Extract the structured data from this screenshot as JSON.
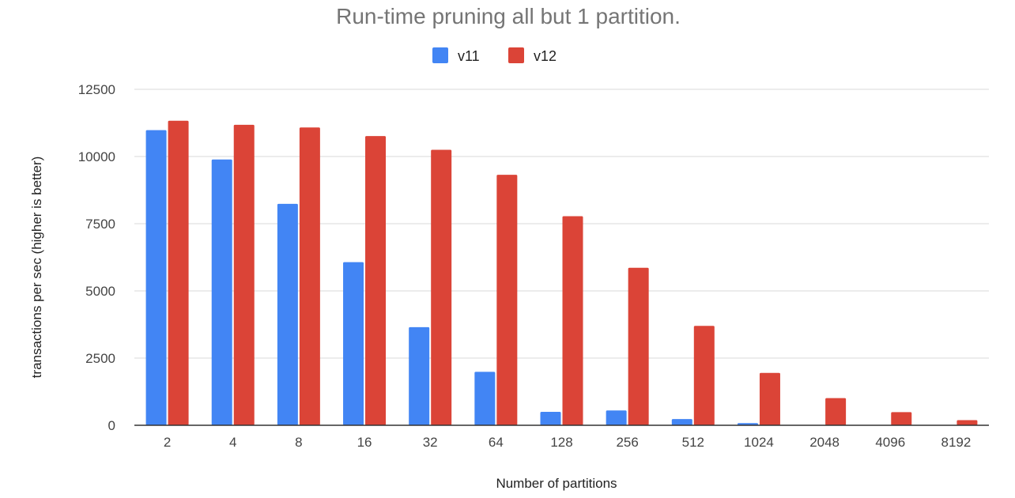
{
  "chart_data": {
    "type": "bar",
    "title": "Run-time pruning all but 1 partition.",
    "xlabel": "Number of partitions",
    "ylabel": "transactions per sec (higher is better)",
    "categories": [
      "2",
      "4",
      "8",
      "16",
      "32",
      "64",
      "128",
      "256",
      "512",
      "1024",
      "2048",
      "4096",
      "8192"
    ],
    "series": [
      {
        "name": "v11",
        "color": "#4285f4",
        "values": [
          10980,
          9890,
          8240,
          6070,
          3650,
          1990,
          500,
          550,
          230,
          80,
          0,
          0,
          0
        ]
      },
      {
        "name": "v12",
        "color": "#db4437",
        "values": [
          11330,
          11180,
          11080,
          10760,
          10250,
          9320,
          7780,
          5860,
          3700,
          1950,
          1010,
          490,
          190
        ]
      }
    ],
    "ylim": [
      0,
      12500
    ],
    "yticks": [
      "0",
      "2500",
      "5000",
      "7500",
      "10000",
      "12500"
    ],
    "grid": true,
    "legend_position": "top-center"
  }
}
